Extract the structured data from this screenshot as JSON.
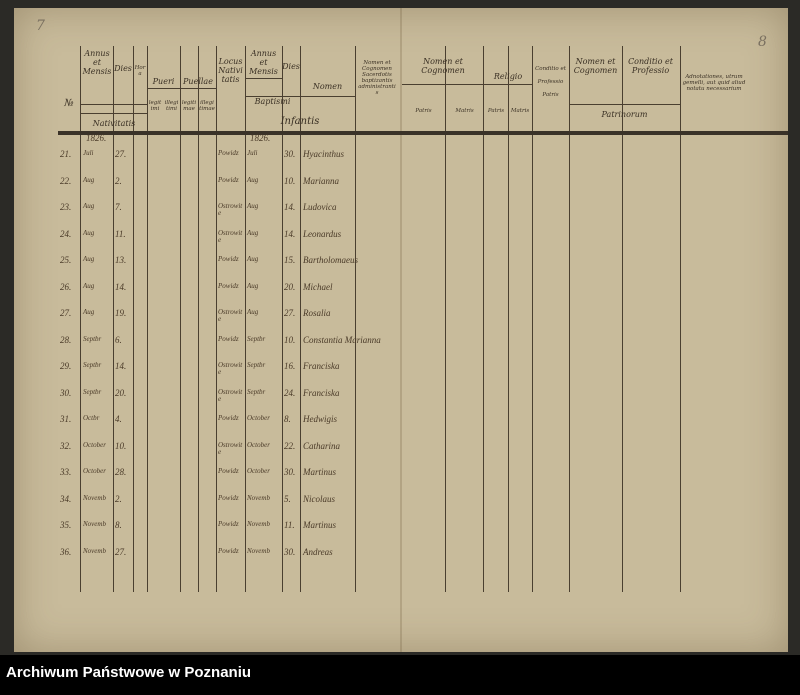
{
  "page_numbers": {
    "left": "7",
    "right": "8"
  },
  "headers": {
    "no": "№",
    "annus_mensis": "Annus et Mensis",
    "dies": "Dies",
    "hora": "Hora",
    "nativitatis": "Nativitatis",
    "pueri": "Pueri",
    "pueri_legit": "legitimi",
    "pueri_illegit": "illegitimi",
    "puellae": "Puellae",
    "puellae_legit": "legitimae",
    "puellae_illegit": "illegitimae",
    "locus": "Locus Nativitatis",
    "annus_mensis_bapt": "Annus et Mensis",
    "dies_bapt": "Dies",
    "baptismi": "Baptismi",
    "nomen": "Nomen",
    "infantis": "Infantis",
    "sacerdos": "Nomen et Cognomen Sacerdotis baptizantis administrantis",
    "nomen_cognomen": "Nomen et Cognomen",
    "patris": "Patris",
    "matris": "Matris",
    "religio": "Religio",
    "religio_patris": "Patris",
    "religio_matris": "Matris",
    "conditio_patris": "Conditio et Professio Patris",
    "nomen_patrinorum": "Nomen et Cognomen",
    "conditio_patrinorum": "Conditio et Professio",
    "patrinorum": "Patrinorum",
    "adnotationes": "Adnotationes, utrum gemelli, aut quid aliud notatu necessarium"
  },
  "year_marks": {
    "nativitatis": "1826.",
    "baptismi": "1826."
  },
  "rows": [
    {
      "no": "21.",
      "month": "Juli",
      "day": "27.",
      "place": "Powidz",
      "bmonth": "Juli",
      "bday": "30.",
      "name": "Hyacinthus"
    },
    {
      "no": "22.",
      "month": "Aug",
      "day": "2.",
      "place": "Powidz",
      "bmonth": "Aug",
      "bday": "10.",
      "name": "Marianna"
    },
    {
      "no": "23.",
      "month": "Aug",
      "day": "7.",
      "place": "Ostrowite",
      "bmonth": "Aug",
      "bday": "14.",
      "name": "Ludovica"
    },
    {
      "no": "24.",
      "month": "Aug",
      "day": "11.",
      "place": "Ostrowite",
      "bmonth": "Aug",
      "bday": "14.",
      "name": "Leonardus"
    },
    {
      "no": "25.",
      "month": "Aug",
      "day": "13.",
      "place": "Powidz",
      "bmonth": "Aug",
      "bday": "15.",
      "name": "Bartholomaeus"
    },
    {
      "no": "26.",
      "month": "Aug",
      "day": "14.",
      "place": "Powidz",
      "bmonth": "Aug",
      "bday": "20.",
      "name": "Michael"
    },
    {
      "no": "27.",
      "month": "Aug",
      "day": "19.",
      "place": "Ostrowite",
      "bmonth": "Aug",
      "bday": "27.",
      "name": "Rosalia"
    },
    {
      "no": "28.",
      "month": "Septbr",
      "day": "6.",
      "place": "Powidz",
      "bmonth": "Septbr",
      "bday": "10.",
      "name": "Constantia Marianna"
    },
    {
      "no": "29.",
      "month": "Septbr",
      "day": "14.",
      "place": "Ostrowite",
      "bmonth": "Septbr",
      "bday": "16.",
      "name": "Franciska"
    },
    {
      "no": "30.",
      "month": "Septbr",
      "day": "20.",
      "place": "Ostrowite",
      "bmonth": "Septbr",
      "bday": "24.",
      "name": "Franciska"
    },
    {
      "no": "31.",
      "month": "Octbr",
      "day": "4.",
      "place": "Powidz",
      "bmonth": "October",
      "bday": "8.",
      "name": "Hedwigis"
    },
    {
      "no": "32.",
      "month": "October",
      "day": "10.",
      "place": "Ostrowite",
      "bmonth": "October",
      "bday": "22.",
      "name": "Catharina"
    },
    {
      "no": "33.",
      "month": "October",
      "day": "28.",
      "place": "Powidz",
      "bmonth": "October",
      "bday": "30.",
      "name": "Martinus"
    },
    {
      "no": "34.",
      "month": "Novemb",
      "day": "2.",
      "place": "Powidz",
      "bmonth": "Novemb",
      "bday": "5.",
      "name": "Nicolaus"
    },
    {
      "no": "35.",
      "month": "Novemb",
      "day": "8.",
      "place": "Powidz",
      "bmonth": "Novemb",
      "bday": "11.",
      "name": "Martinus"
    },
    {
      "no": "36.",
      "month": "Novemb",
      "day": "27.",
      "place": "Powidz",
      "bmonth": "Novemb",
      "bday": "30.",
      "name": "Andreas"
    }
  ],
  "footer": {
    "archive": "Archiwum Państwowe w Poznaniu"
  }
}
